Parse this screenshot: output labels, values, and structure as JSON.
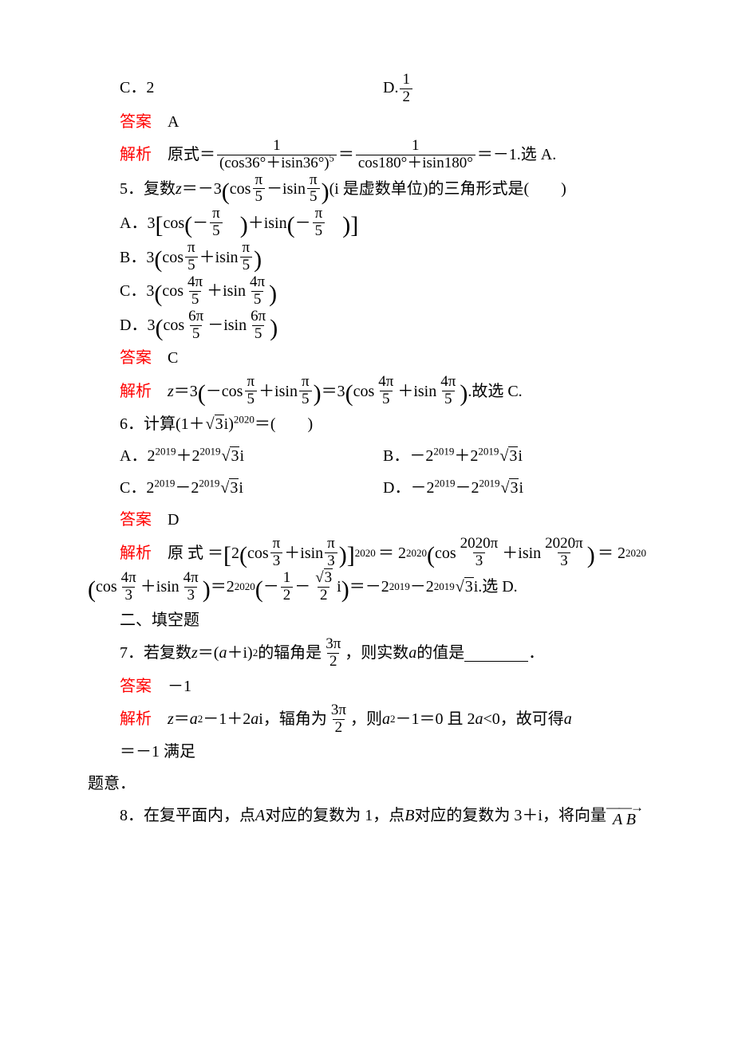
{
  "labels": {
    "answer": "答案",
    "analysis": "解析",
    "hence_choose": "故选",
    "choose": "选",
    "section_fill": "二、填空题",
    "original_eq": "原式＝",
    "original_eq2": "原 式 ＝",
    "satisfies": "满足",
    "meaning": "题意．"
  },
  "q4": {
    "opt_c": "C．2",
    "opt_d_prefix": "D.",
    "d_frac_num": "1",
    "d_frac_den": "2",
    "ans": "A",
    "sol_num1": "1",
    "sol_den1a": "(cos36°＋isin36°)",
    "sol_den1_exp": "5",
    "sol_num2": "1",
    "sol_den2": "cos180°＋isin180°",
    "sol_tail": "＝－1.选 A."
  },
  "q5": {
    "stem_a": "5．复数 ",
    "stem_z": "z",
    "stem_b": "＝－3",
    "stem_in_l": "cos",
    "stem_pi": "π",
    "stem_5": "5",
    "stem_mid": "－isin",
    "stem_c": "(i 是虚数单位)的三角形式是(　　)",
    "A_pre": "A．3",
    "A_l": "cos",
    "A_mid": "＋isin",
    "A_num": "π",
    "A_den": "5",
    "B_pre": "B．3",
    "B_l": "cos",
    "B_mid": "＋isin",
    "B_num": "π",
    "B_den": "5",
    "C_pre": "C．3",
    "C_l": "cos",
    "C_mid": "＋isin",
    "C_num": "4π",
    "C_den": "5",
    "D_pre": "D．3",
    "D_l": "cos",
    "D_mid": "－isin",
    "D_num": "6π",
    "D_den": "5",
    "ans": "C",
    "sol_z": "z",
    "sol_eq1": "＝3",
    "sol_in1_l": "－cos",
    "sol_in1_m": "＋isin",
    "sol_eq2": "＝3",
    "sol_in2_l": "cos",
    "sol_in2_m": "＋isin",
    "sol_in2_num": "4π",
    "sol_in2_den": "5",
    "sol_tail": ".故选 C."
  },
  "q6": {
    "stem_a": "6．计算(1＋",
    "sqrt3": "3",
    "stem_b": "i)",
    "exp": "2020",
    "stem_c": "＝(　　)",
    "A": "A．2",
    "A2": "＋2",
    "Aexp": "2019",
    "B": "B．－2",
    "B2": "＋2",
    "C": "C．2",
    "C2": "－2",
    "D": "D．－2",
    "D2": "－2",
    "i_tail": "i",
    "ans": "D",
    "sol_pre": "2",
    "sol_in_l": "cos",
    "sol_in_m": "＋isin",
    "sol_pi": "π",
    "sol_3": "3",
    "sol_br_exp": "2020",
    "sol_eq1": "＝ 2",
    "sol_big_num": "2020π",
    "sol_big_den": "3",
    "sol_eq2": "＝ 2",
    "line2_in_num": "4π",
    "line2_in_den": "3",
    "line2_eq": "＝2",
    "line2_half": "1",
    "line2_two": "2",
    "line2_rt3": "3",
    "line2_tail": "＝－2",
    "line2_tail2": "－2",
    "line2_end": "i.选 D."
  },
  "q7": {
    "stem_a": "7．若复数 ",
    "z": "z",
    "stem_b": "＝(",
    "a": "a",
    "stem_c": "＋i)",
    "exp": "2",
    "stem_d": " 的辐角是",
    "ang_num": "3π",
    "ang_den": "2",
    "stem_e": "，则实数 ",
    "stem_f": " 的值是",
    "stem_g": "．",
    "ans": "－1",
    "sol_a": "z",
    "sol_b": "＝",
    "sol_c": "a",
    "sol_sq": "2",
    "sol_d": "－1＋2",
    "sol_e": "a",
    "sol_f": "i，辐角为",
    "sol_g": "，则 ",
    "sol_h": "a",
    "sol_i": "－1＝0 且 2",
    "sol_j": "a",
    "sol_k": "<0，故可得 ",
    "sol_l": "a",
    "sol_m": "＝－1 满足"
  },
  "q8": {
    "stem_a": "8．在复平面内，点 ",
    "A": "A",
    "stem_b": " 对应的复数为 1，点 ",
    "B": "B",
    "stem_c": " 对应的复数为 3＋i，将向量 ",
    "vec": "A B"
  },
  "colors": {
    "red": "#ff0000",
    "text": "#000000",
    "bg": "#ffffff"
  }
}
